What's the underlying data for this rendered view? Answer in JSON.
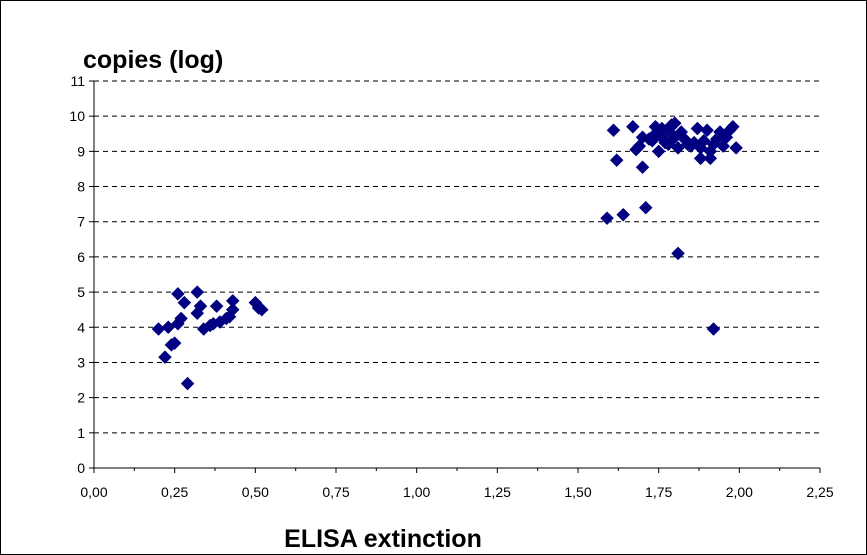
{
  "chart_data": {
    "type": "scatter",
    "title": "",
    "ylabel": "copies (log)",
    "xlabel": "ELISA extinction",
    "xlim": [
      0,
      2.25
    ],
    "ylim": [
      0,
      11
    ],
    "x_ticks": [
      "0,00",
      "0,25",
      "0,50",
      "0,75",
      "1,00",
      "1,25",
      "1,50",
      "1,75",
      "2,00",
      "2,25"
    ],
    "y_ticks": [
      "0",
      "1",
      "2",
      "3",
      "4",
      "5",
      "6",
      "7",
      "8",
      "9",
      "10",
      "11"
    ],
    "grid": "horizontal dashed",
    "legend": "none",
    "marker_color": "#000080",
    "marker": "diamond",
    "points": [
      [
        0.2,
        3.95
      ],
      [
        0.22,
        3.15
      ],
      [
        0.23,
        4.0
      ],
      [
        0.24,
        3.5
      ],
      [
        0.25,
        3.55
      ],
      [
        0.26,
        4.1
      ],
      [
        0.26,
        4.95
      ],
      [
        0.27,
        4.25
      ],
      [
        0.28,
        4.7
      ],
      [
        0.29,
        2.4
      ],
      [
        0.32,
        4.4
      ],
      [
        0.32,
        5.0
      ],
      [
        0.33,
        4.6
      ],
      [
        0.34,
        3.95
      ],
      [
        0.36,
        4.05
      ],
      [
        0.37,
        4.1
      ],
      [
        0.38,
        4.6
      ],
      [
        0.39,
        4.15
      ],
      [
        0.41,
        4.25
      ],
      [
        0.42,
        4.3
      ],
      [
        0.43,
        4.75
      ],
      [
        0.43,
        4.5
      ],
      [
        0.5,
        4.7
      ],
      [
        0.51,
        4.55
      ],
      [
        0.52,
        4.5
      ],
      [
        1.59,
        7.1
      ],
      [
        1.61,
        9.6
      ],
      [
        1.62,
        8.75
      ],
      [
        1.64,
        7.2
      ],
      [
        1.67,
        9.7
      ],
      [
        1.68,
        9.05
      ],
      [
        1.69,
        9.15
      ],
      [
        1.7,
        8.55
      ],
      [
        1.7,
        9.4
      ],
      [
        1.71,
        7.4
      ],
      [
        1.72,
        9.35
      ],
      [
        1.73,
        9.3
      ],
      [
        1.74,
        9.5
      ],
      [
        1.74,
        9.7
      ],
      [
        1.75,
        9.0
      ],
      [
        1.76,
        9.65
      ],
      [
        1.76,
        9.4
      ],
      [
        1.77,
        9.25
      ],
      [
        1.78,
        9.6
      ],
      [
        1.78,
        9.2
      ],
      [
        1.79,
        9.75
      ],
      [
        1.8,
        9.8
      ],
      [
        1.8,
        9.4
      ],
      [
        1.81,
        6.1
      ],
      [
        1.81,
        9.1
      ],
      [
        1.82,
        9.55
      ],
      [
        1.83,
        9.35
      ],
      [
        1.84,
        9.2
      ],
      [
        1.85,
        9.15
      ],
      [
        1.86,
        9.25
      ],
      [
        1.87,
        9.65
      ],
      [
        1.88,
        8.8
      ],
      [
        1.88,
        9.1
      ],
      [
        1.89,
        9.3
      ],
      [
        1.9,
        9.6
      ],
      [
        1.91,
        8.8
      ],
      [
        1.91,
        9.0
      ],
      [
        1.92,
        3.95
      ],
      [
        1.92,
        9.2
      ],
      [
        1.93,
        9.35
      ],
      [
        1.94,
        9.55
      ],
      [
        1.95,
        9.15
      ],
      [
        1.96,
        9.4
      ],
      [
        1.97,
        9.6
      ],
      [
        1.98,
        9.7
      ],
      [
        1.99,
        9.1
      ]
    ]
  }
}
